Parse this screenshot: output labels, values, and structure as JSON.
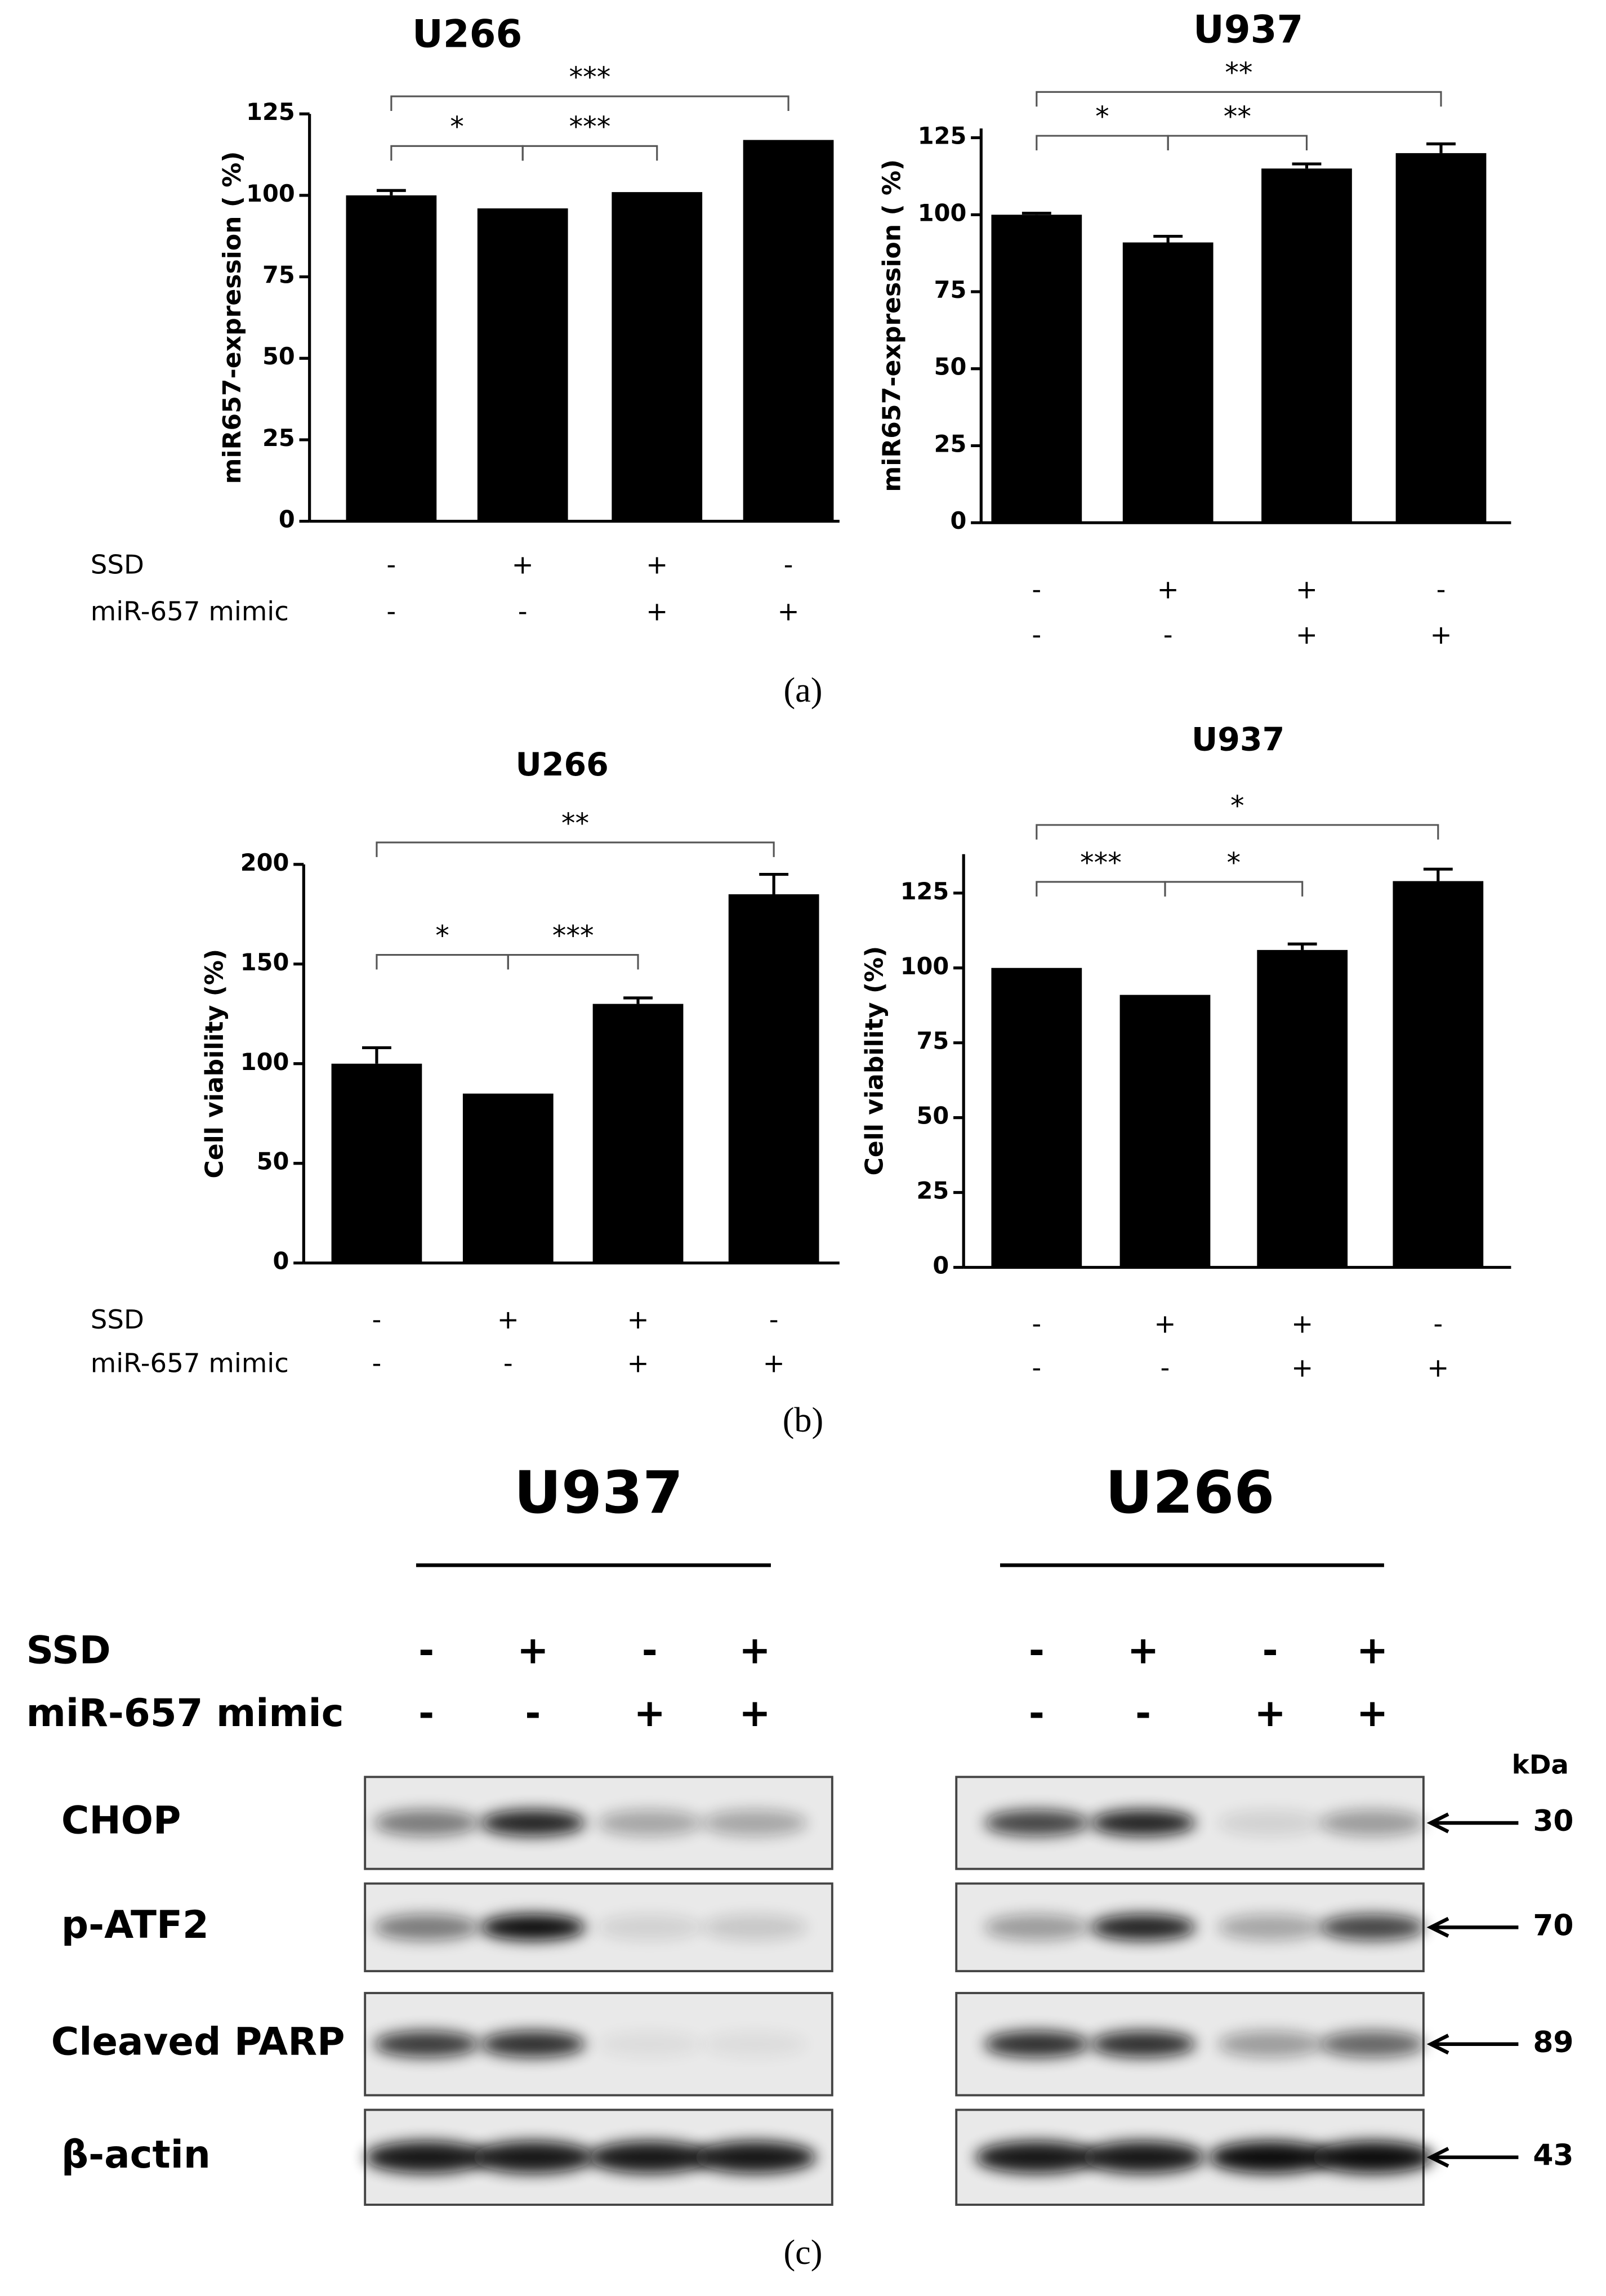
{
  "chart_data": [
    {
      "type": "bar",
      "title": "U266",
      "y_label": "miR657-expression ( %)",
      "ylim": [
        0,
        125
      ],
      "yticks": [
        0,
        25,
        50,
        75,
        100,
        125
      ],
      "color": "#000000",
      "values": [
        100,
        96,
        101,
        117
      ],
      "errors": [
        1.5,
        null,
        null,
        null
      ],
      "comparisons": [
        {
          "label": "*",
          "groups": [
            0,
            1
          ]
        },
        {
          "label": "***",
          "groups": [
            1,
            2
          ]
        },
        {
          "label": "***",
          "groups": [
            0,
            3
          ]
        }
      ],
      "treatments": [
        {
          "name": "SSD",
          "signs": [
            "-",
            "+",
            "+",
            "-"
          ]
        },
        {
          "name": "miR-657 mimic",
          "signs": [
            "-",
            "-",
            "+",
            "+"
          ]
        }
      ]
    },
    {
      "type": "bar",
      "title": "U937",
      "y_label": "miR657-expression ( %)",
      "ylim": [
        0,
        128
      ],
      "yticks": [
        0,
        25,
        50,
        75,
        100,
        125
      ],
      "color": "#000000",
      "values": [
        100,
        91,
        115,
        120
      ],
      "errors": [
        0.5,
        2,
        1.5,
        3
      ],
      "comparisons": [
        {
          "label": "*",
          "groups": [
            0,
            1
          ]
        },
        {
          "label": "**",
          "groups": [
            1,
            2
          ]
        },
        {
          "label": "**",
          "groups": [
            0,
            3
          ]
        }
      ],
      "treatments": [
        {
          "signs": [
            "-",
            "+",
            "+",
            "-"
          ]
        },
        {
          "signs": [
            "-",
            "-",
            "+",
            "+"
          ]
        }
      ]
    },
    {
      "type": "bar",
      "title": "U266",
      "y_label": "Cell viability (%)",
      "ylim": [
        0,
        200
      ],
      "yticks": [
        0,
        50,
        100,
        150,
        200
      ],
      "color": "#000000",
      "values": [
        100,
        85,
        130,
        185
      ],
      "errors": [
        8,
        null,
        3,
        10
      ],
      "comparisons": [
        {
          "label": "*",
          "groups": [
            0,
            1
          ]
        },
        {
          "label": "***",
          "groups": [
            1,
            2
          ]
        },
        {
          "label": "**",
          "groups": [
            0,
            3
          ]
        }
      ],
      "treatments": [
        {
          "name": "SSD",
          "signs": [
            "-",
            "+",
            "+",
            "-"
          ]
        },
        {
          "name": "miR-657 mimic",
          "signs": [
            "-",
            "-",
            "+",
            "+"
          ]
        }
      ]
    },
    {
      "type": "bar",
      "title": "U937",
      "y_label": "Cell viability (%)",
      "ylim": [
        0,
        138
      ],
      "yticks": [
        0,
        25,
        50,
        75,
        100,
        125
      ],
      "color": "#000000",
      "values": [
        100,
        91,
        106,
        129
      ],
      "errors": [
        null,
        null,
        2,
        4
      ],
      "comparisons": [
        {
          "label": "***",
          "groups": [
            0,
            1
          ]
        },
        {
          "label": "*",
          "groups": [
            1,
            2
          ]
        },
        {
          "label": "*",
          "groups": [
            0,
            3
          ]
        }
      ],
      "treatments": [
        {
          "signs": [
            "-",
            "+",
            "+",
            "-"
          ]
        },
        {
          "signs": [
            "-",
            "-",
            "+",
            "+"
          ]
        }
      ]
    }
  ],
  "panel_labels": [
    "(a)",
    "(b)",
    "(c)"
  ],
  "blot": {
    "treatment_names": [
      "SSD",
      "miR-657 mimic"
    ],
    "groups": [
      {
        "title": "U937",
        "signs": [
          [
            "-",
            "+",
            "-",
            "+"
          ],
          [
            "-",
            "-",
            "+",
            "+"
          ]
        ]
      },
      {
        "title": "U266",
        "signs": [
          [
            "-",
            "+",
            "-",
            "+"
          ],
          [
            "-",
            "-",
            "+",
            "+"
          ]
        ]
      }
    ],
    "proteins": [
      "CHOP",
      "p-ATF2",
      "Cleaved PARP",
      "β-actin"
    ],
    "unit": "kDa",
    "sizes": [
      30,
      70,
      89,
      43
    ]
  }
}
